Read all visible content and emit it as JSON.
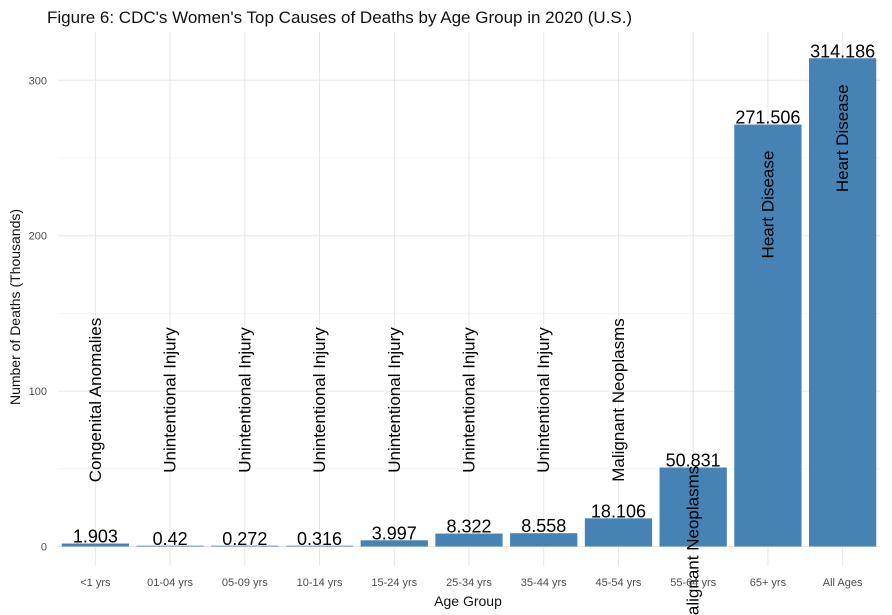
{
  "chart_data": {
    "type": "bar",
    "title": "Figure 6: CDC's Women's Top Causes of Deaths by Age Group in 2020 (U.S.)",
    "xlabel": "Age Group",
    "ylabel": "Number of Deaths (Thousands)",
    "ylim": [
      0,
      320
    ],
    "yticks": [
      0,
      100,
      200,
      300
    ],
    "grid": true,
    "bar_color": "#4682B4",
    "categories": [
      "<1 yrs",
      "01-04 yrs",
      "05-09 yrs",
      "10-14 yrs",
      "15-24 yrs",
      "25-34 yrs",
      "35-44 yrs",
      "45-54 yrs",
      "55-64 yrs",
      "65+ yrs",
      "All Ages"
    ],
    "values": [
      1.903,
      0.42,
      0.272,
      0.316,
      3.997,
      8.322,
      8.558,
      18.106,
      50.831,
      271.506,
      314.186
    ],
    "value_labels": [
      "1.903",
      "0.42",
      "0.272",
      "0.316",
      "3.997",
      "8.322",
      "8.558",
      "18.106",
      "50.831",
      "271.506",
      "314.186"
    ],
    "causes": [
      "Congenital Anomalies",
      "Unintentional Injury",
      "Unintentional Injury",
      "Unintentional Injury",
      "Unintentional Injury",
      "Unintentional Injury",
      "Unintentional Injury",
      "Malignant Neoplasms",
      "Malignant Neoplasms",
      "Heart Disease",
      "Heart Disease"
    ]
  }
}
